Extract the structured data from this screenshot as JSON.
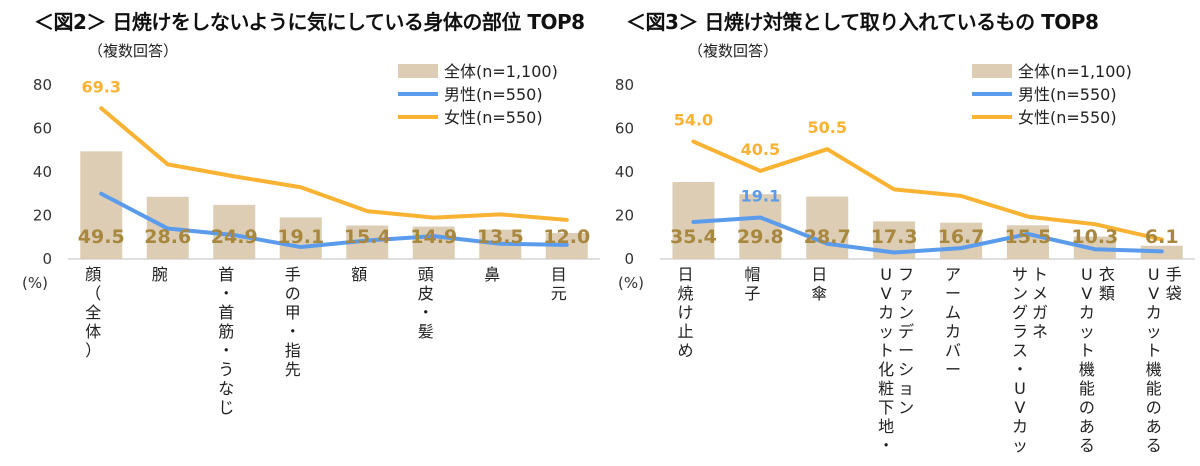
{
  "colors": {
    "total": "#dccdb4",
    "male": "#5b9bec",
    "female": "#f9b232",
    "total_label": "#a8873f",
    "axis": "#bfbfbf",
    "text": "#333333"
  },
  "chart_data": [
    {
      "type": "bar",
      "title": "＜図2＞ 日焼けをしないように気にしている身体の部位 TOP8",
      "subtitle": "（複数回答）",
      "ylabel": "(%)",
      "ylim": [
        0,
        80
      ],
      "yticks": [
        "0",
        "20",
        "40",
        "60",
        "80"
      ],
      "categories": [
        "顔（全体）",
        "腕",
        "首・首筋・うなじ",
        "手の甲・指先",
        "額",
        "頭皮・髪",
        "鼻",
        "目元"
      ],
      "series": [
        {
          "name": "全体(n=1,100)",
          "kind": "bar",
          "values": [
            49.5,
            28.6,
            24.9,
            19.1,
            15.4,
            14.9,
            13.5,
            12.0
          ],
          "labels": [
            "49.5",
            "28.6",
            "24.9",
            "19.1",
            "15.4",
            "14.9",
            "13.5",
            "12.0"
          ]
        },
        {
          "name": "男性(n=550)",
          "kind": "line",
          "values": [
            30,
            14,
            11,
            5.5,
            8.5,
            10.5,
            7,
            6.5
          ]
        },
        {
          "name": "女性(n=550)",
          "kind": "line",
          "values": [
            69.3,
            43.5,
            38,
            33,
            22,
            19,
            20.5,
            18
          ]
        }
      ],
      "annotations": [
        {
          "series": 2,
          "index": 0,
          "text": "69.3"
        }
      ],
      "legend": "top-right"
    },
    {
      "type": "bar",
      "title": "＜図3＞ 日焼け対策として取り入れているもの TOP8",
      "subtitle": "（複数回答）",
      "ylabel": "(%)",
      "ylim": [
        0,
        80
      ],
      "yticks": [
        "0",
        "20",
        "40",
        "60",
        "80"
      ],
      "categories": [
        "日焼け止め",
        "帽子",
        "日傘",
        "UVカット化粧下地・ファンデーション",
        "アームカバー",
        "サングラス・UVカットメガネ",
        "UVカット機能のある衣類",
        "UVカット機能のある手袋"
      ],
      "series": [
        {
          "name": "全体(n=1,100)",
          "kind": "bar",
          "values": [
            35.4,
            29.8,
            28.7,
            17.3,
            16.7,
            15.5,
            10.3,
            6.1
          ],
          "labels": [
            "35.4",
            "29.8",
            "28.7",
            "17.3",
            "16.7",
            "15.5",
            "10.3",
            "6.1"
          ]
        },
        {
          "name": "男性(n=550)",
          "kind": "line",
          "values": [
            17,
            19.1,
            7,
            3,
            5,
            11.5,
            4.5,
            3.5
          ]
        },
        {
          "name": "女性(n=550)",
          "kind": "line",
          "values": [
            54.0,
            40.5,
            50.5,
            32,
            29,
            19.5,
            16,
            9
          ]
        }
      ],
      "annotations": [
        {
          "series": 2,
          "index": 0,
          "text": "54.0"
        },
        {
          "series": 2,
          "index": 1,
          "text": "40.5"
        },
        {
          "series": 2,
          "index": 2,
          "text": "50.5"
        },
        {
          "series": 1,
          "index": 1,
          "text": "19.1"
        }
      ],
      "legend": "top-right"
    }
  ]
}
